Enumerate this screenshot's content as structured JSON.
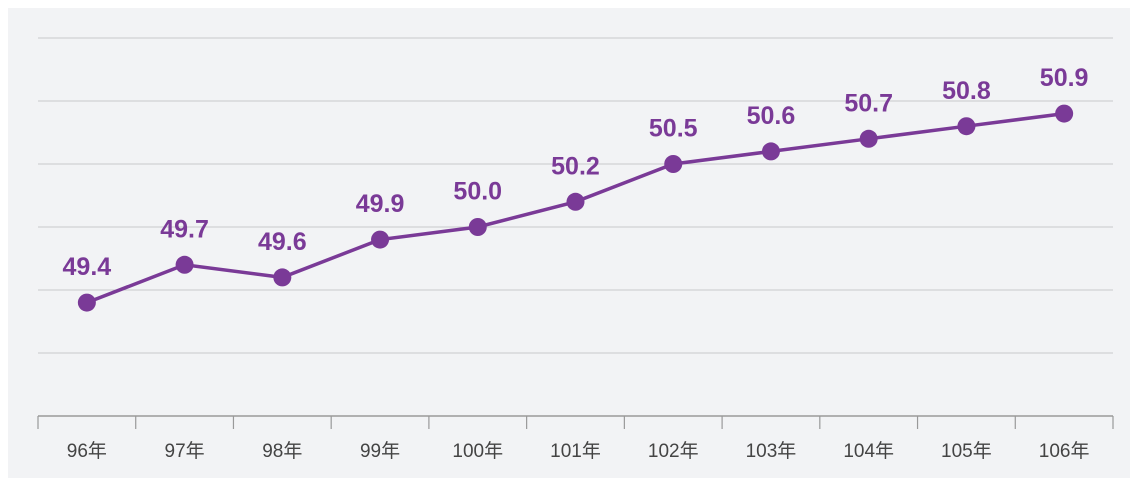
{
  "chart_data": {
    "type": "line",
    "categories": [
      "96年",
      "97年",
      "98年",
      "99年",
      "100年",
      "101年",
      "102年",
      "103年",
      "104年",
      "105年",
      "106年"
    ],
    "series": [
      {
        "color": "#7a3a97",
        "values": [
          49.4,
          49.7,
          49.6,
          49.9,
          50.0,
          50.2,
          50.5,
          50.6,
          50.7,
          50.8,
          50.9
        ]
      }
    ],
    "ylim": [
      48.5,
      51.5
    ],
    "yticks": [
      48.5,
      49,
      49.5,
      50,
      50.5,
      51,
      51.5
    ],
    "grid": true
  }
}
